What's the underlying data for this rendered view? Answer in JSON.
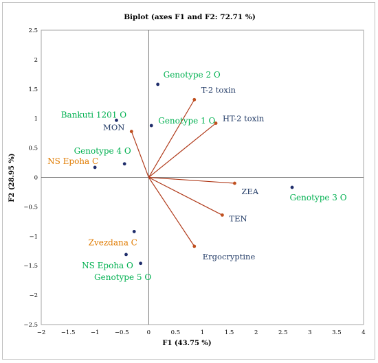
{
  "chart_data": {
    "type": "scatter",
    "title": "Biplot (axes F1 and F2: 72.71 %)",
    "xlabel": "F1 (43.75 %)",
    "ylabel": "F2 (28.95 %)",
    "xlim": [
      -2,
      4
    ],
    "ylim": [
      -2.5,
      2.5
    ],
    "xticks": [
      -2,
      -1.5,
      -1,
      -0.5,
      0,
      0.5,
      1,
      1.5,
      2,
      2.5,
      3,
      3.5,
      4
    ],
    "yticks": [
      -2.5,
      -2,
      -1.5,
      -1,
      -0.5,
      0,
      0.5,
      1,
      1.5,
      2,
      2.5
    ],
    "xtick_labels": [
      "−2",
      "−1.5",
      "−1",
      "−0.5",
      "0",
      "0.5",
      "1",
      "1.5",
      "2",
      "2.5",
      "3",
      "3.5",
      "4"
    ],
    "ytick_labels": [
      "−2.5",
      "−2",
      "−1.5",
      "−1",
      "−0.5",
      "0",
      "0.5",
      "1",
      "1.5",
      "2",
      "2.5"
    ],
    "grid": false,
    "observations": [
      {
        "label": "Genotype 2 O",
        "x": 0.17,
        "y": 1.58,
        "label_color": "#00b050"
      },
      {
        "label": "Genotype 1 O",
        "x": 0.05,
        "y": 0.88,
        "label_color": "#00b050"
      },
      {
        "label": "Bankuti 1201 O",
        "x": -0.6,
        "y": 0.97,
        "label_color": "#00b050"
      },
      {
        "label": "Genotype 4 O",
        "x": -0.45,
        "y": 0.23,
        "label_color": "#00b050"
      },
      {
        "label": "NS Epoha C",
        "x": -1.0,
        "y": 0.17,
        "label_color": "#e07b00"
      },
      {
        "label": "Genotype 3 O",
        "x": 2.67,
        "y": -0.17,
        "label_color": "#00b050"
      },
      {
        "label": "Zvezdana C",
        "x": -0.27,
        "y": -0.92,
        "label_color": "#e07b00"
      },
      {
        "label": "NS Epoha O",
        "x": -0.42,
        "y": -1.31,
        "label_color": "#00b050"
      },
      {
        "label": "Genotype 5 O",
        "x": -0.15,
        "y": -1.46,
        "label_color": "#00b050"
      }
    ],
    "variables": [
      {
        "label": "T-2 toxin",
        "x": 0.85,
        "y": 1.32
      },
      {
        "label": "HT-2 toxin",
        "x": 1.25,
        "y": 0.92
      },
      {
        "label": "MON",
        "x": -0.32,
        "y": 0.78
      },
      {
        "label": "ZEA",
        "x": 1.6,
        "y": -0.1
      },
      {
        "label": "TEN",
        "x": 1.37,
        "y": -0.64
      },
      {
        "label": "Ergocryptine",
        "x": 0.85,
        "y": -1.17
      }
    ],
    "colors": {
      "observation_point": "#1f2d6b",
      "variable_vector": "#b03a1a",
      "variable_point": "#c0501f",
      "variable_label": "#1f3864",
      "axes": "#555555"
    }
  }
}
